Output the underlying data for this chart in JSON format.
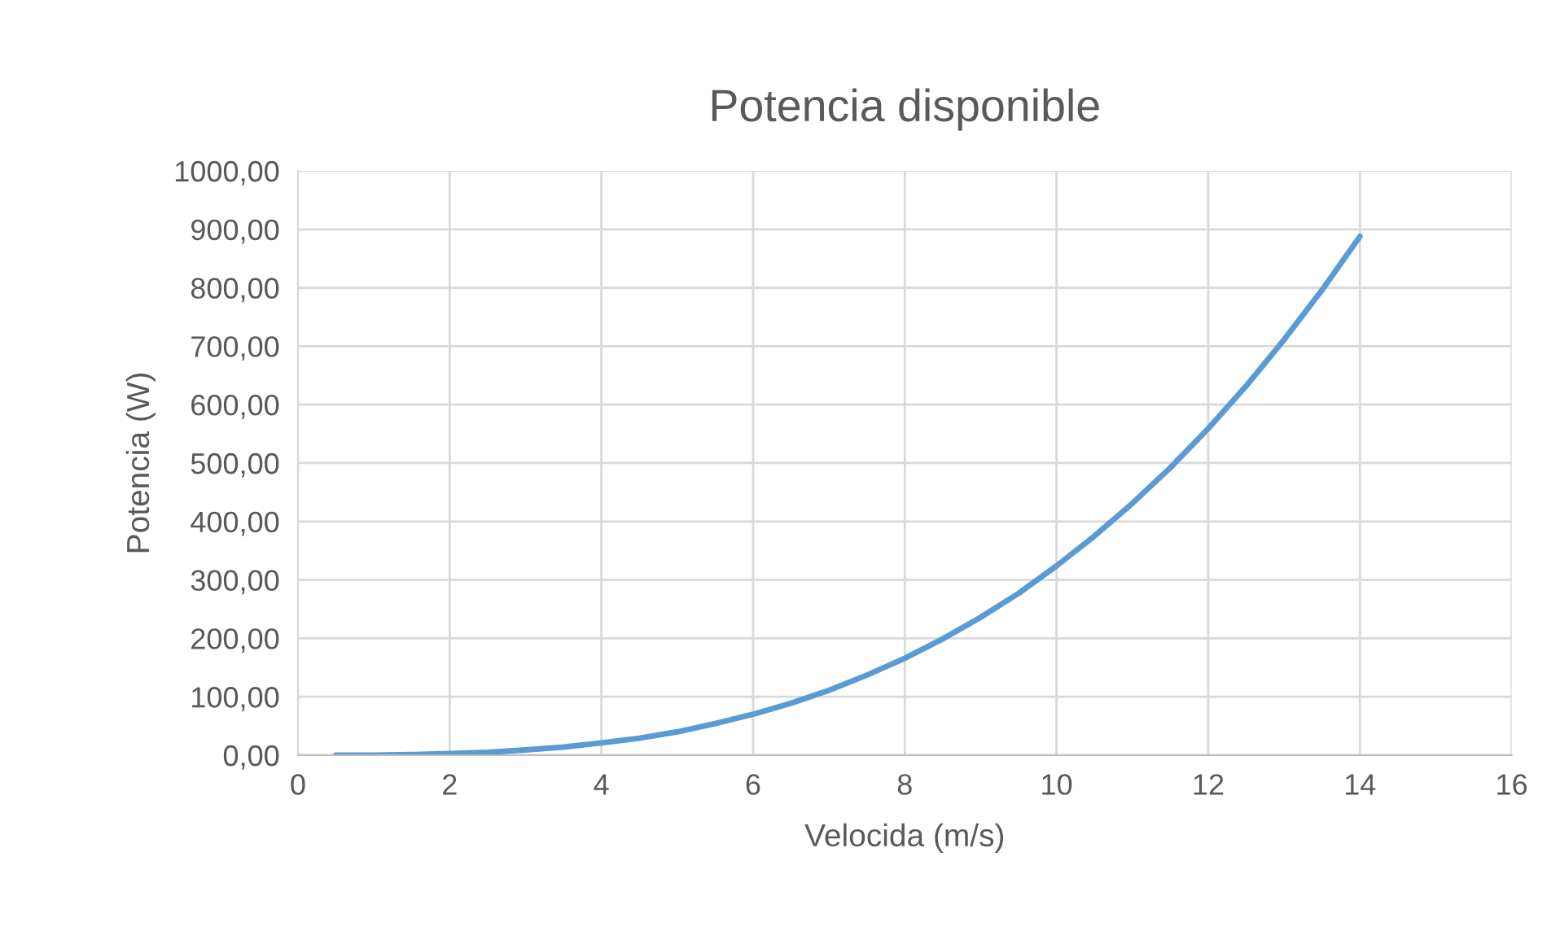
{
  "chart_data": {
    "type": "line",
    "title": "Potencia disponible",
    "xlabel": "Velocida (m/s)",
    "ylabel": "Potencia (W)",
    "x": [
      0.5,
      1,
      1.5,
      2,
      2.5,
      3,
      3.5,
      4,
      4.5,
      5,
      5.5,
      6,
      6.5,
      7,
      7.5,
      8,
      8.5,
      9,
      9.5,
      10,
      10.5,
      11,
      11.5,
      12,
      12.5,
      13,
      13.5,
      14
    ],
    "series": [
      {
        "color": "#5b9bd5",
        "values": [
          0,
          0,
          1,
          3,
          5,
          9,
          14,
          21,
          29,
          40,
          54,
          70,
          89,
          111,
          137,
          166,
          199,
          236,
          277,
          324,
          375,
          431,
          492,
          559,
          632,
          711,
          796,
          888
        ]
      }
    ],
    "xlim": [
      0,
      16
    ],
    "xticks": [
      0,
      2,
      4,
      6,
      8,
      10,
      12,
      14,
      16
    ],
    "ylim": [
      0,
      1000
    ],
    "yticks": [
      {
        "value": 0,
        "label": "0,00"
      },
      {
        "value": 100,
        "label": "100,00"
      },
      {
        "value": 200,
        "label": "200,00"
      },
      {
        "value": 300,
        "label": "300,00"
      },
      {
        "value": 400,
        "label": "400,00"
      },
      {
        "value": 500,
        "label": "500,00"
      },
      {
        "value": 600,
        "label": "600,00"
      },
      {
        "value": 700,
        "label": "700,00"
      },
      {
        "value": 800,
        "label": "800,00"
      },
      {
        "value": 900,
        "label": "900,00"
      },
      {
        "value": 1000,
        "label": "1000,00"
      }
    ],
    "grid": true,
    "marker": "none",
    "line_style": "solid"
  }
}
